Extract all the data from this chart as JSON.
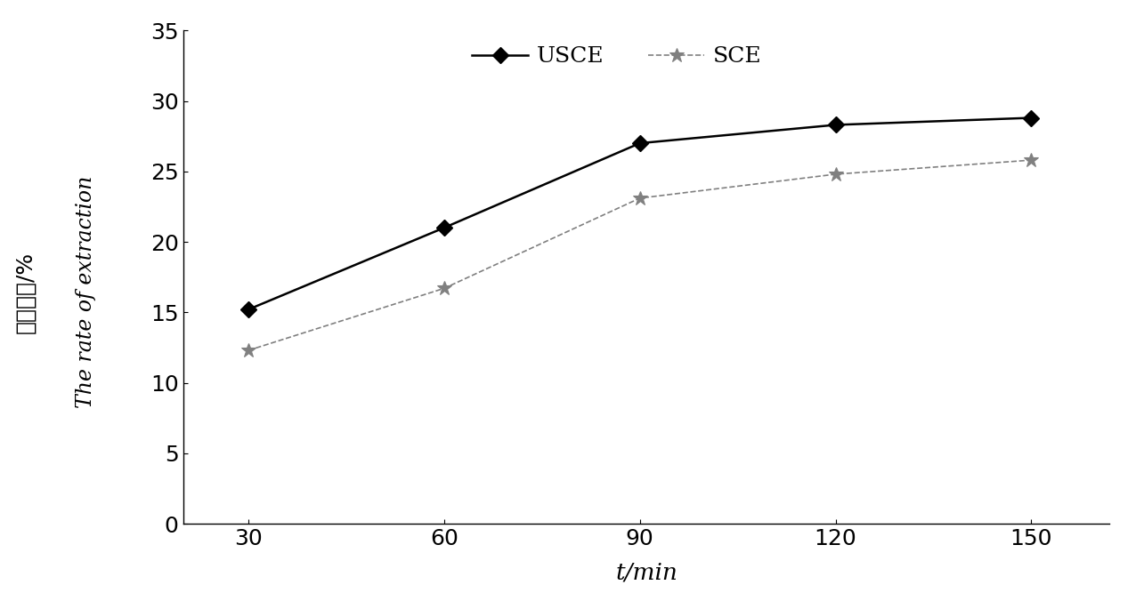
{
  "x": [
    30,
    60,
    90,
    120,
    150
  ],
  "usce_y": [
    15.2,
    21.0,
    27.0,
    28.3,
    28.8
  ],
  "sce_y": [
    12.3,
    16.7,
    23.1,
    24.8,
    25.8
  ],
  "usce_label": "USCE",
  "sce_label": "SCE",
  "xlabel": "t/min",
  "ylabel_en": "The rate of extraction",
  "ylabel_cn": "落取得率/%",
  "ylim": [
    0,
    35
  ],
  "yticks": [
    0,
    5,
    10,
    15,
    20,
    25,
    30,
    35
  ],
  "xticks": [
    30,
    60,
    90,
    120,
    150
  ],
  "line_color_usce": "#000000",
  "line_color_sce": "#808080",
  "background_color": "#ffffff",
  "legend_fontsize": 18,
  "tick_fontsize": 18,
  "label_fontsize": 17
}
